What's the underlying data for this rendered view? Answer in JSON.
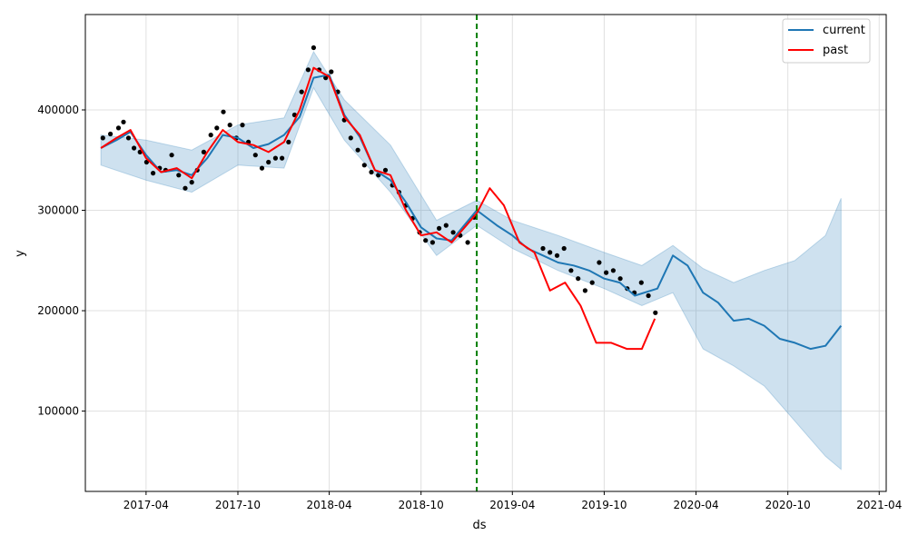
{
  "chart_data": {
    "type": "line",
    "xlabel": "ds",
    "ylabel": "y",
    "xlim": [
      "2016-12-01",
      "2021-04-15"
    ],
    "ylim": [
      20000,
      495000
    ],
    "x_ticks": [
      "2017-04",
      "2017-10",
      "2018-04",
      "2018-10",
      "2019-04",
      "2019-10",
      "2020-04",
      "2020-10",
      "2021-04"
    ],
    "y_ticks": [
      100000,
      200000,
      300000,
      400000
    ],
    "grid": true,
    "legend_position": "top-right",
    "changepoint_date": "2019-01-20",
    "colors": {
      "current": "#1f77b4",
      "past": "#ff0000",
      "band": "#1f77b4",
      "points": "#000000",
      "vline": "#008000"
    },
    "series": [
      {
        "name": "current",
        "x": [
          "2017-01-01",
          "2017-02-01",
          "2017-03-01",
          "2017-04-01",
          "2017-05-01",
          "2017-06-01",
          "2017-07-01",
          "2017-08-01",
          "2017-09-01",
          "2017-10-01",
          "2017-11-01",
          "2017-12-01",
          "2018-01-01",
          "2018-02-01",
          "2018-03-01",
          "2018-04-01",
          "2018-05-01",
          "2018-06-01",
          "2018-07-01",
          "2018-08-01",
          "2018-09-01",
          "2018-10-01",
          "2018-11-01",
          "2018-12-01",
          "2019-01-20",
          "2019-03-01",
          "2019-04-01",
          "2019-05-01",
          "2019-06-01",
          "2019-07-01",
          "2019-08-01",
          "2019-09-01",
          "2019-10-01",
          "2019-11-01",
          "2019-12-01",
          "2020-01-15",
          "2020-02-15",
          "2020-03-15",
          "2020-04-15",
          "2020-05-15",
          "2020-06-15",
          "2020-07-15",
          "2020-08-15",
          "2020-09-15",
          "2020-10-15",
          "2020-11-15",
          "2020-12-15",
          "2021-01-15"
        ],
        "values": [
          362000,
          370000,
          378000,
          355000,
          338000,
          340000,
          335000,
          352000,
          375000,
          372000,
          362000,
          366000,
          375000,
          393000,
          432000,
          435000,
          395000,
          373000,
          340000,
          330000,
          308000,
          283000,
          272000,
          270000,
          300000,
          285000,
          275000,
          262000,
          255000,
          248000,
          245000,
          240000,
          232000,
          228000,
          215000,
          222000,
          255000,
          245000,
          218000,
          208000,
          190000,
          192000,
          185000,
          172000,
          168000,
          162000,
          165000,
          185000
        ]
      },
      {
        "name": "past",
        "x": [
          "2017-01-01",
          "2017-02-01",
          "2017-03-01",
          "2017-04-01",
          "2017-05-01",
          "2017-06-01",
          "2017-07-01",
          "2017-08-01",
          "2017-09-01",
          "2017-10-01",
          "2017-11-01",
          "2017-12-01",
          "2018-01-01",
          "2018-02-01",
          "2018-03-01",
          "2018-04-01",
          "2018-05-01",
          "2018-06-01",
          "2018-07-01",
          "2018-08-01",
          "2018-09-01",
          "2018-10-01",
          "2018-11-01",
          "2018-12-01",
          "2019-01-20",
          "2019-02-15",
          "2019-03-15",
          "2019-04-15",
          "2019-05-15",
          "2019-06-15",
          "2019-07-15",
          "2019-08-15",
          "2019-09-15",
          "2019-10-15",
          "2019-11-15",
          "2019-12-15",
          "2020-01-10"
        ],
        "values": [
          362000,
          372000,
          380000,
          352000,
          338000,
          342000,
          332000,
          358000,
          380000,
          368000,
          365000,
          358000,
          368000,
          400000,
          442000,
          433000,
          393000,
          375000,
          340000,
          335000,
          300000,
          275000,
          278000,
          268000,
          297000,
          322000,
          305000,
          268000,
          258000,
          220000,
          228000,
          205000,
          168000,
          168000,
          162000,
          162000,
          192000
        ]
      }
    ],
    "uncertainty_band": {
      "x": [
        "2017-01-01",
        "2017-04-01",
        "2017-07-01",
        "2017-10-01",
        "2018-01-01",
        "2018-03-01",
        "2018-05-01",
        "2018-08-01",
        "2018-11-01",
        "2019-01-20",
        "2019-04-01",
        "2019-07-01",
        "2019-10-01",
        "2019-12-15",
        "2020-02-15",
        "2020-04-15",
        "2020-06-15",
        "2020-08-15",
        "2020-10-15",
        "2020-12-15",
        "2021-01-15"
      ],
      "upper": [
        375000,
        370000,
        360000,
        385000,
        392000,
        458000,
        410000,
        365000,
        290000,
        310000,
        290000,
        275000,
        258000,
        245000,
        265000,
        242000,
        228000,
        240000,
        250000,
        275000,
        312000
      ],
      "lower": [
        345000,
        330000,
        318000,
        345000,
        342000,
        422000,
        370000,
        318000,
        255000,
        285000,
        262000,
        240000,
        222000,
        205000,
        218000,
        162000,
        145000,
        125000,
        90000,
        55000,
        42000
      ]
    },
    "observed_points": {
      "x": [
        "2017-01-05",
        "2017-01-20",
        "2017-02-05",
        "2017-02-15",
        "2017-02-25",
        "2017-03-08",
        "2017-03-20",
        "2017-04-02",
        "2017-04-15",
        "2017-04-28",
        "2017-05-10",
        "2017-05-22",
        "2017-06-05",
        "2017-06-18",
        "2017-07-01",
        "2017-07-12",
        "2017-07-25",
        "2017-08-08",
        "2017-08-20",
        "2017-09-02",
        "2017-09-15",
        "2017-09-28",
        "2017-10-10",
        "2017-10-22",
        "2017-11-05",
        "2017-11-18",
        "2017-12-01",
        "2017-12-15",
        "2017-12-28",
        "2018-01-10",
        "2018-01-22",
        "2018-02-05",
        "2018-02-18",
        "2018-03-01",
        "2018-03-12",
        "2018-03-25",
        "2018-04-05",
        "2018-04-18",
        "2018-05-01",
        "2018-05-14",
        "2018-05-28",
        "2018-06-10",
        "2018-06-24",
        "2018-07-08",
        "2018-07-22",
        "2018-08-05",
        "2018-08-18",
        "2018-09-01",
        "2018-09-14",
        "2018-09-28",
        "2018-10-10",
        "2018-10-24",
        "2018-11-06",
        "2018-11-20",
        "2018-12-04",
        "2018-12-18",
        "2019-01-02",
        "2019-01-15",
        "2019-06-01",
        "2019-06-15",
        "2019-06-29",
        "2019-07-13",
        "2019-07-27",
        "2019-08-10",
        "2019-08-24",
        "2019-09-07",
        "2019-09-21",
        "2019-10-05",
        "2019-10-19",
        "2019-11-02",
        "2019-11-16",
        "2019-11-30",
        "2019-12-14",
        "2019-12-28",
        "2020-01-11"
      ],
      "y": [
        372000,
        376000,
        382000,
        388000,
        372000,
        362000,
        358000,
        348000,
        337000,
        342000,
        340000,
        355000,
        335000,
        322000,
        328000,
        340000,
        358000,
        375000,
        382000,
        398000,
        385000,
        372000,
        385000,
        368000,
        355000,
        342000,
        348000,
        352000,
        352000,
        368000,
        395000,
        418000,
        440000,
        462000,
        440000,
        432000,
        438000,
        418000,
        390000,
        372000,
        360000,
        345000,
        338000,
        335000,
        340000,
        325000,
        318000,
        305000,
        292000,
        278000,
        270000,
        268000,
        282000,
        285000,
        278000,
        275000,
        268000,
        293000,
        262000,
        258000,
        255000,
        262000,
        240000,
        232000,
        220000,
        228000,
        248000,
        238000,
        240000,
        232000,
        222000,
        218000,
        228000,
        215000,
        198000
      ]
    }
  }
}
